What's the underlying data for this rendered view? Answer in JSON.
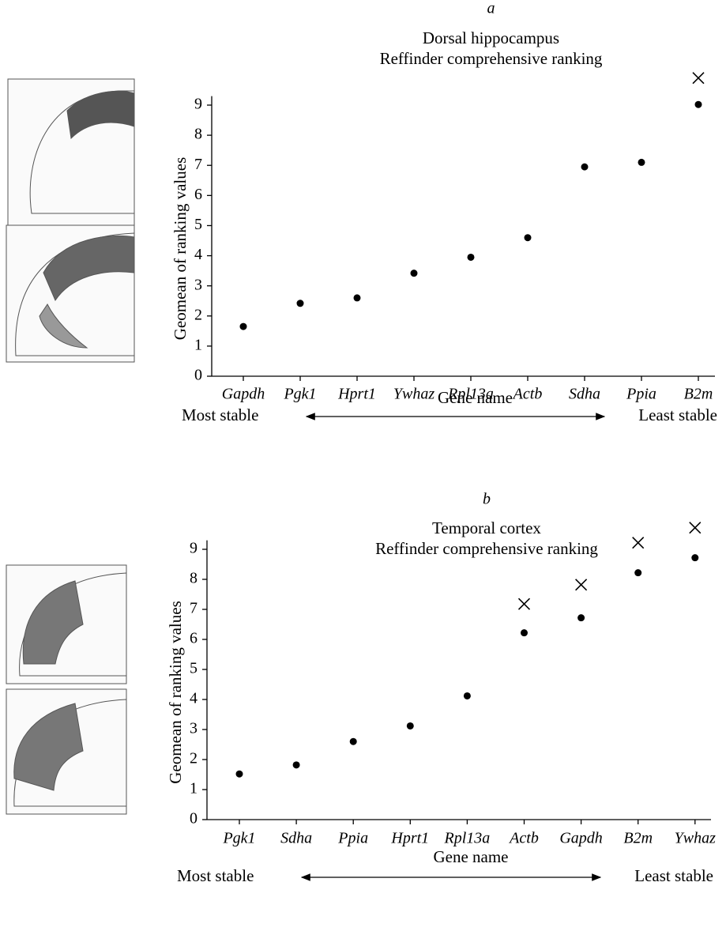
{
  "chart_data": [
    {
      "type": "scatter",
      "panel": "a",
      "title": [
        "Dorsal hippocampus",
        "Reffinder comprehensive ranking"
      ],
      "ylabel": "Geomean of ranking values",
      "xlabel": "Gene name",
      "stability_left": "Most stable",
      "stability_right": "Least stable",
      "categories": [
        "Gapdh",
        "Pgk1",
        "Hprt1",
        "Ywhaz",
        "Rpl13a",
        "Actb",
        "Sdha",
        "Ppia",
        "B2m"
      ],
      "values": [
        1.65,
        2.42,
        2.6,
        3.42,
        3.95,
        4.6,
        6.95,
        7.1,
        9.02
      ],
      "cross_values": [
        null,
        null,
        null,
        null,
        null,
        null,
        null,
        null,
        9.9
      ],
      "ylim": [
        0,
        9.3
      ],
      "yticks": [
        0,
        1,
        2,
        3,
        4,
        5,
        6,
        7,
        8,
        9
      ],
      "color": "#000000"
    },
    {
      "type": "scatter",
      "panel": "b",
      "title": [
        "Temporal cortex",
        "Reffinder comprehensive ranking"
      ],
      "ylabel": "Geomean of ranking values",
      "xlabel": "Gene name",
      "stability_left": "Most stable",
      "stability_right": "Least stable",
      "categories": [
        "Pgk1",
        "Sdha",
        "Ppia",
        "Hprt1",
        "Rpl13a",
        "Actb",
        "Gapdh",
        "B2m",
        "Ywhaz"
      ],
      "values": [
        1.52,
        1.82,
        2.6,
        3.12,
        4.12,
        6.22,
        6.72,
        8.22,
        8.72
      ],
      "cross_values": [
        null,
        null,
        null,
        null,
        null,
        7.18,
        7.82,
        9.22,
        9.72
      ],
      "ylim": [
        0,
        9.3
      ],
      "yticks": [
        0,
        1,
        2,
        3,
        4,
        5,
        6,
        7,
        8,
        9
      ],
      "color": "#000000"
    }
  ]
}
